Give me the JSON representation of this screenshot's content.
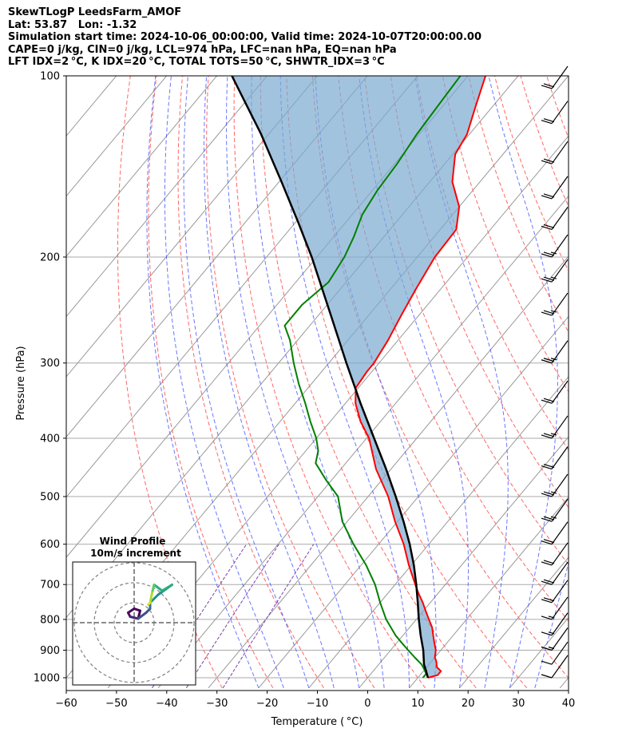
{
  "header": {
    "line1": "SkewTLogP LeedsFarm_AMOF",
    "line2": "Lat: 53.87   Lon: -1.32",
    "line3": "Simulation start time: 2024-10-06_00:00:00, Valid time: 2024-10-07T20:00:00.00",
    "line4": "CAPE=0 j/kg, CIN=0 j/kg, LCL=974 hPa, LFC=nan hPa, EQ=nan hPa",
    "line5": "LFT IDX=2 °C, K IDX=20 °C, TOTAL TOTS=50 °C, SHWTR_IDX=3 °C"
  },
  "colors": {
    "temperature": "#ff0000",
    "dewpoint": "#008000",
    "parcel": "#000000",
    "shading": "#7aa9d0",
    "dry_adiabat": "#ff6666",
    "moist_adiabat": "#4455ff",
    "mixing_ratio": "#7a3fb5",
    "isotherm": "#999999",
    "isobar": "#aaaaaa"
  },
  "chart_data": {
    "type": "skewT",
    "xlabel": "Temperature ( °C)",
    "ylabel": "Pressure (hPa)",
    "xlim": [
      -60,
      40
    ],
    "ylim": [
      1040,
      100
    ],
    "x_ticks": [
      -60,
      -50,
      -40,
      -30,
      -20,
      -10,
      0,
      10,
      20,
      30,
      40
    ],
    "x_tick_labels": [
      "−60",
      "−50",
      "−40",
      "−30",
      "−20",
      "−10",
      "0",
      "10",
      "20",
      "30",
      "40"
    ],
    "y_ticks": [
      1000,
      900,
      800,
      700,
      600,
      500,
      400,
      300,
      200,
      100
    ],
    "y_tick_labels": [
      "1000",
      "900",
      "800",
      "700",
      "600",
      "500",
      "400",
      "300",
      "200",
      "100"
    ],
    "grid": true,
    "series": [
      {
        "key": "temperature",
        "p": [
          1000,
          990,
          975,
          960,
          940,
          925,
          900,
          875,
          850,
          825,
          800,
          775,
          750,
          725,
          700,
          650,
          600,
          550,
          500,
          450,
          400,
          375,
          350,
          330,
          310,
          300,
          275,
          250,
          225,
          200,
          180,
          165,
          150,
          135,
          125,
          112,
          100
        ],
        "t": [
          12.0,
          13.5,
          13.5,
          12.0,
          11.0,
          10.0,
          9.0,
          7.5,
          6.0,
          4.5,
          2.5,
          0.5,
          -1.5,
          -3.8,
          -6.0,
          -10.5,
          -15.0,
          -20.5,
          -26.0,
          -33.0,
          -39.5,
          -44.0,
          -48.0,
          -50.5,
          -51.0,
          -51.0,
          -52.0,
          -53.5,
          -55.0,
          -56.5,
          -56.8,
          -60.0,
          -65.5,
          -69.5,
          -70.5,
          -73.5,
          -76.5
        ]
      },
      {
        "key": "dewpoint",
        "p": [
          1000,
          985,
          970,
          950,
          925,
          900,
          875,
          850,
          800,
          750,
          700,
          650,
          600,
          550,
          500,
          470,
          440,
          420,
          400,
          375,
          350,
          325,
          300,
          275,
          260,
          240,
          220,
          200,
          185,
          170,
          155,
          140,
          125,
          112,
          100
        ],
        "t": [
          11.0,
          11.0,
          10.0,
          8.5,
          6.0,
          3.5,
          1.0,
          -1.5,
          -6.0,
          -10.0,
          -14.0,
          -19.0,
          -25.0,
          -31.0,
          -36.0,
          -41.0,
          -46.0,
          -47.5,
          -50.0,
          -54.0,
          -58.0,
          -62.5,
          -67.0,
          -71.5,
          -75.0,
          -75.0,
          -73.5,
          -74.5,
          -76.0,
          -78.0,
          -79.0,
          -79.5,
          -80.5,
          -81.0,
          -81.5
        ]
      },
      {
        "key": "parcel",
        "p": [
          1000,
          974,
          950,
          900,
          850,
          800,
          750,
          700,
          650,
          600,
          550,
          500,
          450,
          400,
          350,
          300,
          250,
          200,
          175,
          150,
          125,
          100
        ],
        "t": [
          12.0,
          10.5,
          9.0,
          6.5,
          3.5,
          0.5,
          -2.5,
          -5.8,
          -9.5,
          -13.8,
          -18.8,
          -24.5,
          -31.0,
          -38.5,
          -47.0,
          -56.5,
          -67.5,
          -81.0,
          -89.5,
          -99.5,
          -111.5,
          -127.0
        ]
      }
    ],
    "wind_barbs": [
      {
        "p": 1000,
        "spd_kt": 10
      },
      {
        "p": 950,
        "spd_kt": 10
      },
      {
        "p": 900,
        "spd_kt": 15
      },
      {
        "p": 850,
        "spd_kt": 15
      },
      {
        "p": 800,
        "spd_kt": 15
      },
      {
        "p": 750,
        "spd_kt": 20
      },
      {
        "p": 700,
        "spd_kt": 20
      },
      {
        "p": 650,
        "spd_kt": 20
      },
      {
        "p": 600,
        "spd_kt": 20
      },
      {
        "p": 550,
        "spd_kt": 25
      },
      {
        "p": 500,
        "spd_kt": 25
      },
      {
        "p": 450,
        "spd_kt": 30
      },
      {
        "p": 400,
        "spd_kt": 25
      },
      {
        "p": 350,
        "spd_kt": 30
      },
      {
        "p": 300,
        "spd_kt": 25
      },
      {
        "p": 250,
        "spd_kt": 25
      },
      {
        "p": 220,
        "spd_kt": 25
      },
      {
        "p": 200,
        "spd_kt": 25
      },
      {
        "p": 180,
        "spd_kt": 20
      },
      {
        "p": 160,
        "spd_kt": 20
      },
      {
        "p": 140,
        "spd_kt": 20
      },
      {
        "p": 120,
        "spd_kt": 20
      },
      {
        "p": 105,
        "spd_kt": 20
      }
    ],
    "inset": {
      "title_line1": "Wind Profile",
      "title_line2": "10m/s increment",
      "rings": [
        1,
        2,
        3
      ],
      "hodograph": [
        {
          "u": 0.2,
          "v": 0.2,
          "c": "#440154"
        },
        {
          "u": 0.3,
          "v": 0.6,
          "c": "#440154"
        },
        {
          "u": 0.0,
          "v": 0.7,
          "c": "#46085c"
        },
        {
          "u": -0.3,
          "v": 0.5,
          "c": "#471063"
        },
        {
          "u": -0.2,
          "v": 0.3,
          "c": "#482475"
        },
        {
          "u": 0.2,
          "v": 0.2,
          "c": "#3b528b"
        },
        {
          "u": 0.6,
          "v": 0.5,
          "c": "#3b528b"
        },
        {
          "u": 0.8,
          "v": 0.7,
          "c": "#2c728e"
        },
        {
          "u": 0.8,
          "v": 1.0,
          "c": "#21918c"
        },
        {
          "u": 1.2,
          "v": 1.4,
          "c": "#21918c"
        },
        {
          "u": 1.9,
          "v": 1.9,
          "c": "#28ae80"
        },
        {
          "u": 1.4,
          "v": 1.6,
          "c": "#28ae80"
        },
        {
          "u": 1.0,
          "v": 1.9,
          "c": "#5ec962"
        },
        {
          "u": 0.9,
          "v": 1.5,
          "c": "#addc30"
        },
        {
          "u": 0.8,
          "v": 1.0,
          "c": "#dde318"
        },
        {
          "u": 0.7,
          "v": 0.9,
          "c": "#fde725"
        }
      ]
    }
  }
}
